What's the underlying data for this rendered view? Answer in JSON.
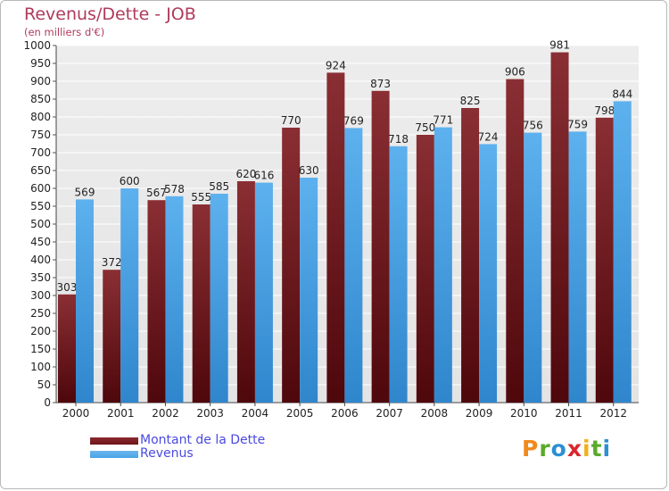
{
  "header": {
    "title": "Revenus/Dette - JOB",
    "subtitle": "(en milliers d'€)"
  },
  "legend": [
    {
      "label": "Montant de la Dette",
      "color": "#6e1418"
    },
    {
      "label": "Revenus",
      "color": "#4aa3e6"
    }
  ],
  "logo": {
    "letters": [
      "P",
      "r",
      "o",
      "x",
      "i",
      "t",
      "i"
    ],
    "colors": [
      "#f08a1c",
      "#5aaa2a",
      "#2b8fd4",
      "#d9262e",
      "#f0b01a",
      "#5aaa2a",
      "#2b8fd4"
    ]
  },
  "chart_data": {
    "type": "bar",
    "title": "Revenus/Dette - JOB",
    "subtitle": "(en milliers d'€)",
    "categories": [
      "2000",
      "2001",
      "2002",
      "2003",
      "2004",
      "2005",
      "2006",
      "2007",
      "2008",
      "2009",
      "2010",
      "2011",
      "2012"
    ],
    "series": [
      {
        "name": "Montant de la Dette",
        "color": "#6e1418",
        "values": [
          303,
          372,
          567,
          555,
          620,
          770,
          924,
          873,
          750,
          825,
          906,
          981,
          798
        ]
      },
      {
        "name": "Revenus",
        "color": "#4aa3e6",
        "values": [
          569,
          600,
          578,
          585,
          616,
          630,
          769,
          718,
          771,
          724,
          756,
          759,
          844
        ]
      }
    ],
    "ylim": [
      0,
      1000
    ],
    "ytick_step": 50,
    "grid": true,
    "legend_position": "bottom-left"
  }
}
